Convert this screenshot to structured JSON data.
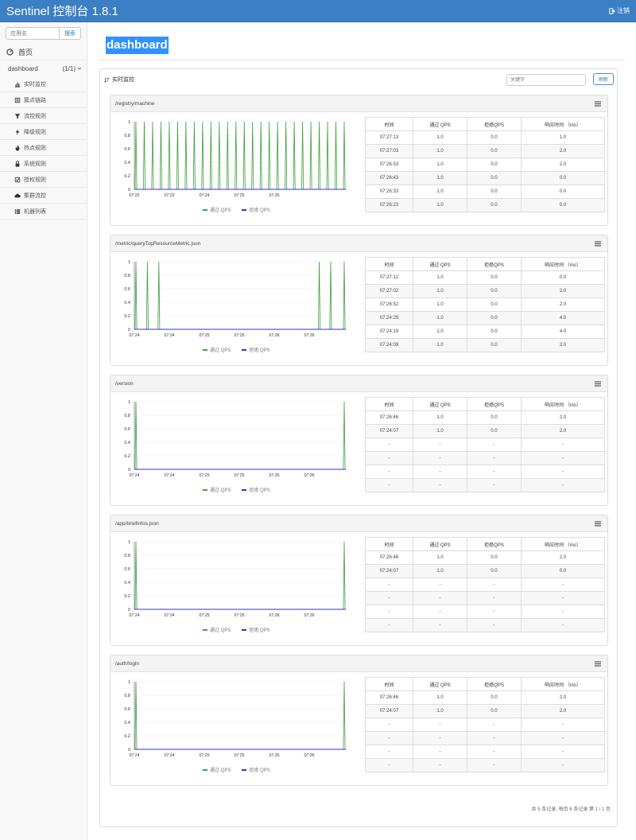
{
  "app": {
    "title": "Sentinel 控制台 1.8.1",
    "logout_label": "注销"
  },
  "sidebar": {
    "search_placeholder": "应用名",
    "search_button": "搜索",
    "home_label": "首页",
    "app_name": "dashboard",
    "app_count": "(1/1)",
    "items": [
      {
        "label": "实时监控",
        "icon": "bar-chart-icon"
      },
      {
        "label": "簇点链路",
        "icon": "list-icon"
      },
      {
        "label": "流控规则",
        "icon": "filter-icon"
      },
      {
        "label": "降级规则",
        "icon": "flash-icon"
      },
      {
        "label": "热点规则",
        "icon": "fire-icon"
      },
      {
        "label": "系统规则",
        "icon": "lock-icon"
      },
      {
        "label": "授权规则",
        "icon": "check-icon"
      },
      {
        "label": "集群流控",
        "icon": "cloud-icon"
      },
      {
        "label": "机器列表",
        "icon": "th-list-icon"
      }
    ]
  },
  "main": {
    "page_title": "dashboard",
    "panel_title": "实时监控",
    "keyword_placeholder": "关键字",
    "refresh_button": "刷新",
    "table_headers": [
      "时间",
      "通过 QPS",
      "拒绝QPS",
      "响应时间 （ms）"
    ],
    "legend": {
      "pass": "通过 QPS",
      "block": "拒绝 QPS"
    },
    "colors": {
      "pass": "#3c9f3c",
      "block": "#3333cc"
    },
    "footer": "共 5 条记录, 每页 6 条记录 第 1 / 1 页",
    "cards": [
      {
        "resource": "/registry/machine",
        "chart_data": {
          "type": "line",
          "x_ticks": [
            "07:22",
            "07:23",
            "07:24",
            "07:25",
            "07:26"
          ],
          "y_ticks": [
            "1",
            "0.8",
            "0.6",
            "0.4",
            "0.2",
            "0"
          ],
          "ylim": [
            0,
            1
          ],
          "series": [
            {
              "name": "通过 QPS",
              "spikes": [
                0.0,
                0.04,
                0.08,
                0.12,
                0.16,
                0.2,
                0.24,
                0.28,
                0.32,
                0.36,
                0.4,
                0.44,
                0.48,
                0.52,
                0.56,
                0.6,
                0.64,
                0.68,
                0.72,
                0.76,
                0.8,
                0.84,
                0.88,
                0.92,
                0.96,
                1.0
              ]
            },
            {
              "name": "拒绝 QPS",
              "spikes": []
            }
          ]
        },
        "rows": [
          [
            "07:27:13",
            "1.0",
            "0.0",
            "1.0"
          ],
          [
            "07:27:03",
            "1.0",
            "0.0",
            "2.0"
          ],
          [
            "07:26:53",
            "1.0",
            "0.0",
            "2.0"
          ],
          [
            "07:26:43",
            "1.0",
            "0.0",
            "0.0"
          ],
          [
            "07:26:33",
            "1.0",
            "0.0",
            "0.0"
          ],
          [
            "07:26:23",
            "1.0",
            "0.0",
            "0.0"
          ]
        ]
      },
      {
        "resource": "/metric/queryTopResourceMetric.json",
        "chart_data": {
          "type": "line",
          "x_ticks": [
            "07:24",
            "07:24",
            "07:25",
            "07:25",
            "07:26",
            "07:26"
          ],
          "y_ticks": [
            "1",
            "0.8",
            "0.6",
            "0.4",
            "0.2",
            "0"
          ],
          "ylim": [
            0,
            1
          ],
          "series": [
            {
              "name": "通过 QPS",
              "spikes": [
                0.0,
                0.055,
                0.11,
                0.88,
                0.935,
                1.0
              ]
            },
            {
              "name": "拒绝 QPS",
              "spikes": []
            }
          ]
        },
        "rows": [
          [
            "07:27:12",
            "1.0",
            "0.0",
            "0.0"
          ],
          [
            "07:27:02",
            "1.0",
            "0.0",
            "2.0"
          ],
          [
            "07:26:52",
            "1.0",
            "0.0",
            "2.0"
          ],
          [
            "07:24:29",
            "1.0",
            "0.0",
            "4.0"
          ],
          [
            "07:24:19",
            "1.0",
            "0.0",
            "4.0"
          ],
          [
            "07:24:09",
            "1.0",
            "0.0",
            "2.0"
          ]
        ]
      },
      {
        "resource": "/version",
        "chart_data": {
          "type": "line",
          "x_ticks": [
            "07:24",
            "07:24",
            "07:25",
            "07:25",
            "07:26",
            "07:26"
          ],
          "y_ticks": [
            "1",
            "0.8",
            "0.6",
            "0.4",
            "0.2",
            "0"
          ],
          "ylim": [
            0,
            1
          ],
          "series": [
            {
              "name": "通过 QPS",
              "spikes": [
                0.0,
                1.0
              ]
            },
            {
              "name": "拒绝 QPS",
              "spikes": []
            }
          ]
        },
        "rows": [
          [
            "07:26:46",
            "1.0",
            "0.0",
            "2.0"
          ],
          [
            "07:24:07",
            "1.0",
            "0.0",
            "2.0"
          ],
          [
            "-",
            "-",
            "-",
            "-"
          ],
          [
            "-",
            "-",
            "-",
            "-"
          ],
          [
            "-",
            "-",
            "-",
            "-"
          ],
          [
            "-",
            "-",
            "-",
            "-"
          ]
        ]
      },
      {
        "resource": "/app/briefinfos.json",
        "chart_data": {
          "type": "line",
          "x_ticks": [
            "07:24",
            "07:24",
            "07:25",
            "07:25",
            "07:26",
            "07:26"
          ],
          "y_ticks": [
            "1",
            "0.8",
            "0.6",
            "0.4",
            "0.2",
            "0"
          ],
          "ylim": [
            0,
            1
          ],
          "series": [
            {
              "name": "通过 QPS",
              "spikes": [
                0.0,
                1.0
              ]
            },
            {
              "name": "拒绝 QPS",
              "spikes": []
            }
          ]
        },
        "rows": [
          [
            "07:26:46",
            "1.0",
            "0.0",
            "2.0"
          ],
          [
            "07:24:07",
            "1.0",
            "0.0",
            "0.0"
          ],
          [
            "-",
            "-",
            "-",
            "-"
          ],
          [
            "-",
            "-",
            "-",
            "-"
          ],
          [
            "-",
            "-",
            "-",
            "-"
          ],
          [
            "-",
            "-",
            "-",
            "-"
          ]
        ]
      },
      {
        "resource": "/auth/login",
        "chart_data": {
          "type": "line",
          "x_ticks": [
            "07:24",
            "07:24",
            "07:25",
            "07:25",
            "07:26",
            "07:26"
          ],
          "y_ticks": [
            "1",
            "0.8",
            "0.6",
            "0.4",
            "0.2",
            "0"
          ],
          "ylim": [
            0,
            1
          ],
          "series": [
            {
              "name": "通过 QPS",
              "spikes": [
                0.0,
                1.0
              ]
            },
            {
              "name": "拒绝 QPS",
              "spikes": []
            }
          ]
        },
        "rows": [
          [
            "07:26:46",
            "1.0",
            "0.0",
            "2.0"
          ],
          [
            "07:24:07",
            "1.0",
            "0.0",
            "2.0"
          ],
          [
            "-",
            "-",
            "-",
            "-"
          ],
          [
            "-",
            "-",
            "-",
            "-"
          ],
          [
            "-",
            "-",
            "-",
            "-"
          ],
          [
            "-",
            "-",
            "-",
            "-"
          ]
        ]
      }
    ]
  }
}
